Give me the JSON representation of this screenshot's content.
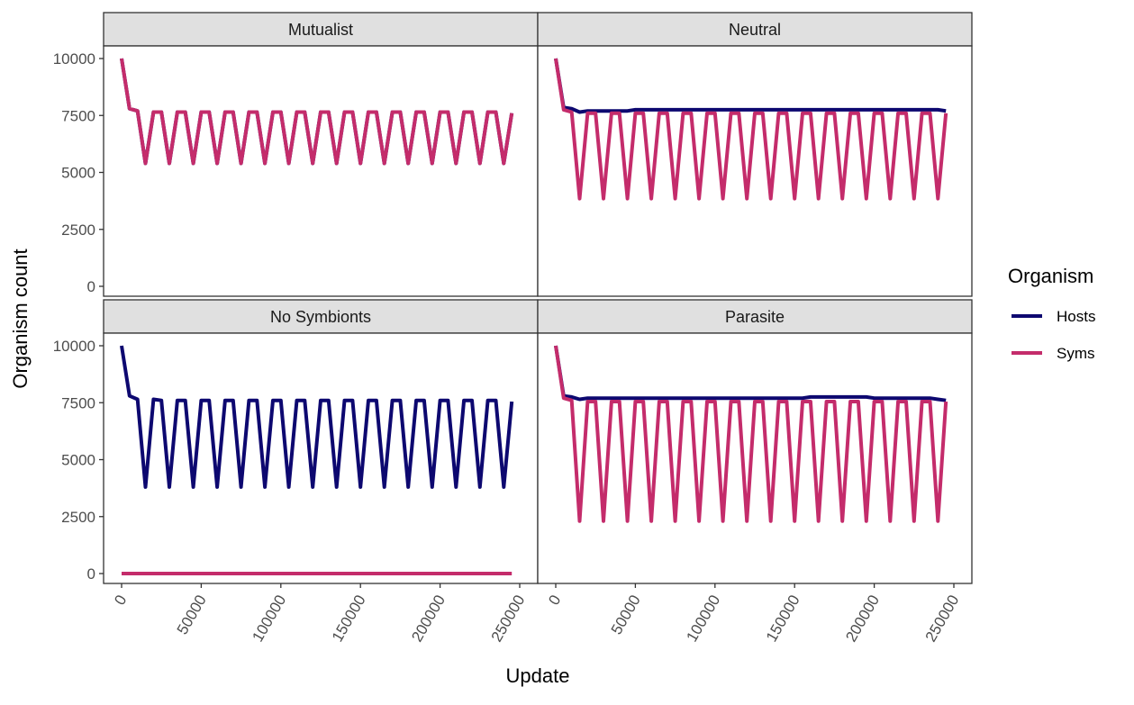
{
  "chart_data": {
    "type": "line",
    "facet_type": "wrap",
    "xlabel": "Update",
    "ylabel": "Organism count",
    "xlim": [
      0,
      250000
    ],
    "ylim": [
      0,
      10000
    ],
    "x_ticks": [
      0,
      50000,
      100000,
      150000,
      200000,
      250000
    ],
    "y_ticks": [
      0,
      2500,
      5000,
      7500,
      10000
    ],
    "grid": false,
    "legend": {
      "title": "Organism",
      "position": "right",
      "entries": [
        {
          "name": "Hosts",
          "color": "#0d0870"
        },
        {
          "name": "Syms",
          "color": "#c42c6b"
        }
      ]
    },
    "panels": [
      {
        "title": "Mutualist",
        "series": [
          {
            "name": "Hosts",
            "color": "#0d0870",
            "x": [
              0,
              5000,
              10000,
              15000,
              20000,
              25000,
              30000,
              35000,
              40000,
              45000,
              50000,
              55000,
              60000,
              65000,
              70000,
              75000,
              80000,
              85000,
              90000,
              95000,
              100000,
              105000,
              110000,
              115000,
              120000,
              125000,
              130000,
              135000,
              140000,
              145000,
              150000,
              155000,
              160000,
              165000,
              170000,
              175000,
              180000,
              185000,
              190000,
              195000,
              200000,
              205000,
              210000,
              215000,
              220000,
              225000,
              230000,
              235000,
              240000,
              245000
            ],
            "y": [
              10000,
              7800,
              7700,
              5400,
              7650,
              7650,
              5400,
              7650,
              7650,
              5400,
              7650,
              7650,
              5400,
              7650,
              7650,
              5400,
              7650,
              7650,
              5400,
              7650,
              7650,
              5400,
              7650,
              7650,
              5400,
              7650,
              7650,
              5400,
              7650,
              7650,
              5400,
              7650,
              7650,
              5400,
              7650,
              7650,
              5400,
              7650,
              7650,
              5400,
              7650,
              7650,
              5400,
              7650,
              7650,
              5400,
              7650,
              7650,
              5400,
              7600
            ]
          },
          {
            "name": "Syms",
            "color": "#c42c6b",
            "x": [
              0,
              5000,
              10000,
              15000,
              20000,
              25000,
              30000,
              35000,
              40000,
              45000,
              50000,
              55000,
              60000,
              65000,
              70000,
              75000,
              80000,
              85000,
              90000,
              95000,
              100000,
              105000,
              110000,
              115000,
              120000,
              125000,
              130000,
              135000,
              140000,
              145000,
              150000,
              155000,
              160000,
              165000,
              170000,
              175000,
              180000,
              185000,
              190000,
              195000,
              200000,
              205000,
              210000,
              215000,
              220000,
              225000,
              230000,
              235000,
              240000,
              245000
            ],
            "y": [
              10000,
              7800,
              7700,
              5400,
              7650,
              7650,
              5400,
              7650,
              7650,
              5400,
              7650,
              7650,
              5400,
              7650,
              7650,
              5400,
              7650,
              7650,
              5400,
              7650,
              7650,
              5400,
              7650,
              7650,
              5400,
              7650,
              7650,
              5400,
              7650,
              7650,
              5400,
              7650,
              7650,
              5400,
              7650,
              7650,
              5400,
              7650,
              7650,
              5400,
              7650,
              7650,
              5400,
              7650,
              7650,
              5400,
              7650,
              7650,
              5400,
              7600
            ]
          }
        ]
      },
      {
        "title": "Neutral",
        "series": [
          {
            "name": "Hosts",
            "color": "#0d0870",
            "x": [
              0,
              5000,
              10000,
              15000,
              20000,
              25000,
              30000,
              35000,
              40000,
              45000,
              50000,
              55000,
              60000,
              65000,
              70000,
              75000,
              80000,
              85000,
              90000,
              95000,
              100000,
              105000,
              110000,
              115000,
              120000,
              125000,
              130000,
              135000,
              140000,
              145000,
              150000,
              155000,
              160000,
              165000,
              170000,
              175000,
              180000,
              185000,
              190000,
              195000,
              200000,
              205000,
              210000,
              215000,
              220000,
              225000,
              230000,
              235000,
              240000,
              245000
            ],
            "y": [
              10000,
              7850,
              7800,
              7650,
              7700,
              7700,
              7700,
              7700,
              7700,
              7700,
              7750,
              7750,
              7750,
              7750,
              7750,
              7750,
              7750,
              7750,
              7750,
              7750,
              7750,
              7750,
              7750,
              7750,
              7750,
              7750,
              7750,
              7750,
              7750,
              7750,
              7750,
              7750,
              7750,
              7750,
              7750,
              7750,
              7750,
              7750,
              7750,
              7750,
              7750,
              7750,
              7750,
              7750,
              7750,
              7750,
              7750,
              7750,
              7750,
              7700
            ]
          },
          {
            "name": "Syms",
            "color": "#c42c6b",
            "x": [
              0,
              5000,
              10000,
              15000,
              20000,
              25000,
              30000,
              35000,
              40000,
              45000,
              50000,
              55000,
              60000,
              65000,
              70000,
              75000,
              80000,
              85000,
              90000,
              95000,
              100000,
              105000,
              110000,
              115000,
              120000,
              125000,
              130000,
              135000,
              140000,
              145000,
              150000,
              155000,
              160000,
              165000,
              170000,
              175000,
              180000,
              185000,
              190000,
              195000,
              200000,
              205000,
              210000,
              215000,
              220000,
              225000,
              230000,
              235000,
              240000,
              245000
            ],
            "y": [
              10000,
              7750,
              7650,
              3850,
              7600,
              7600,
              3850,
              7600,
              7600,
              3850,
              7600,
              7600,
              3850,
              7600,
              7600,
              3850,
              7600,
              7600,
              3850,
              7600,
              7600,
              3850,
              7600,
              7600,
              3850,
              7600,
              7600,
              3850,
              7600,
              7600,
              3850,
              7600,
              7600,
              3850,
              7600,
              7600,
              3850,
              7600,
              7600,
              3850,
              7600,
              7600,
              3850,
              7600,
              7600,
              3850,
              7600,
              7600,
              3850,
              7600
            ]
          }
        ]
      },
      {
        "title": "No Symbionts",
        "series": [
          {
            "name": "Hosts",
            "color": "#0d0870",
            "x": [
              0,
              5000,
              10000,
              15000,
              20000,
              25000,
              30000,
              35000,
              40000,
              45000,
              50000,
              55000,
              60000,
              65000,
              70000,
              75000,
              80000,
              85000,
              90000,
              95000,
              100000,
              105000,
              110000,
              115000,
              120000,
              125000,
              130000,
              135000,
              140000,
              145000,
              150000,
              155000,
              160000,
              165000,
              170000,
              175000,
              180000,
              185000,
              190000,
              195000,
              200000,
              205000,
              210000,
              215000,
              220000,
              225000,
              230000,
              235000,
              240000,
              245000
            ],
            "y": [
              10000,
              7800,
              7650,
              3800,
              7650,
              7600,
              3800,
              7600,
              7600,
              3800,
              7600,
              7600,
              3800,
              7600,
              7600,
              3800,
              7600,
              7600,
              3800,
              7600,
              7600,
              3800,
              7600,
              7600,
              3800,
              7600,
              7600,
              3800,
              7600,
              7600,
              3800,
              7600,
              7600,
              3800,
              7600,
              7600,
              3800,
              7600,
              7600,
              3800,
              7600,
              7600,
              3800,
              7600,
              7600,
              3800,
              7600,
              7600,
              3800,
              7550
            ]
          },
          {
            "name": "Syms",
            "color": "#c42c6b",
            "x": [
              0,
              245000
            ],
            "y": [
              0,
              0
            ]
          }
        ]
      },
      {
        "title": "Parasite",
        "series": [
          {
            "name": "Hosts",
            "color": "#0d0870",
            "x": [
              0,
              5000,
              10000,
              15000,
              20000,
              25000,
              30000,
              35000,
              40000,
              45000,
              50000,
              55000,
              60000,
              65000,
              70000,
              75000,
              80000,
              85000,
              90000,
              95000,
              100000,
              105000,
              110000,
              115000,
              120000,
              125000,
              130000,
              135000,
              140000,
              145000,
              150000,
              155000,
              160000,
              165000,
              170000,
              175000,
              180000,
              185000,
              190000,
              195000,
              200000,
              205000,
              210000,
              215000,
              220000,
              225000,
              230000,
              235000,
              240000,
              245000
            ],
            "y": [
              10000,
              7800,
              7750,
              7650,
              7700,
              7700,
              7700,
              7700,
              7700,
              7700,
              7700,
              7700,
              7700,
              7700,
              7700,
              7700,
              7700,
              7700,
              7700,
              7700,
              7700,
              7700,
              7700,
              7700,
              7700,
              7700,
              7700,
              7700,
              7700,
              7700,
              7700,
              7700,
              7750,
              7750,
              7750,
              7750,
              7750,
              7750,
              7750,
              7750,
              7700,
              7700,
              7700,
              7700,
              7700,
              7700,
              7700,
              7700,
              7650,
              7600
            ]
          },
          {
            "name": "Syms",
            "color": "#c42c6b",
            "x": [
              0,
              5000,
              10000,
              15000,
              20000,
              25000,
              30000,
              35000,
              40000,
              45000,
              50000,
              55000,
              60000,
              65000,
              70000,
              75000,
              80000,
              85000,
              90000,
              95000,
              100000,
              105000,
              110000,
              115000,
              120000,
              125000,
              130000,
              135000,
              140000,
              145000,
              150000,
              155000,
              160000,
              165000,
              170000,
              175000,
              180000,
              185000,
              190000,
              195000,
              200000,
              205000,
              210000,
              215000,
              220000,
              225000,
              230000,
              235000,
              240000,
              245000
            ],
            "y": [
              10000,
              7700,
              7600,
              2300,
              7550,
              7550,
              2300,
              7550,
              7550,
              2300,
              7550,
              7550,
              2300,
              7550,
              7550,
              2300,
              7550,
              7550,
              2300,
              7550,
              7550,
              2300,
              7550,
              7550,
              2300,
              7550,
              7550,
              2300,
              7550,
              7550,
              2300,
              7550,
              7550,
              2300,
              7550,
              7550,
              2300,
              7550,
              7550,
              2300,
              7550,
              7550,
              2300,
              7550,
              7550,
              2300,
              7550,
              7550,
              2300,
              7550
            ]
          }
        ]
      }
    ]
  }
}
